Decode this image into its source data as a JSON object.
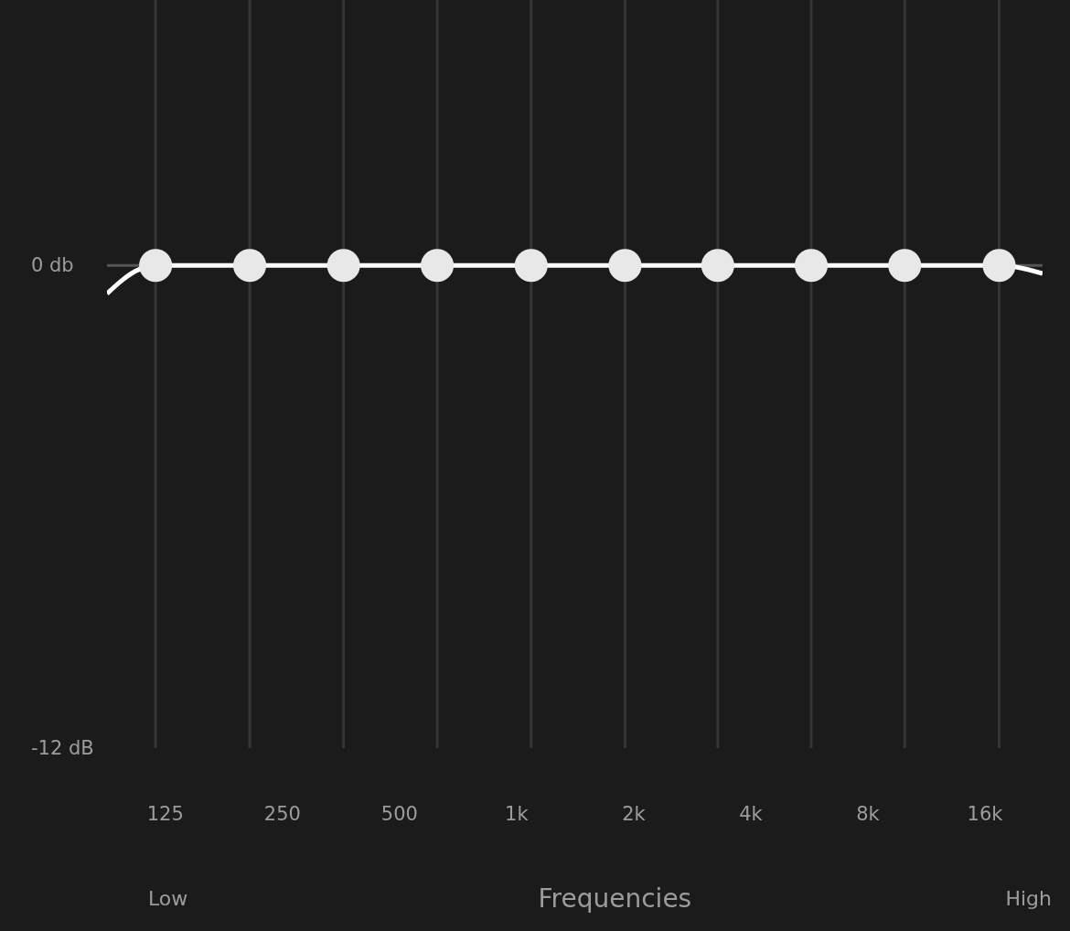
{
  "chart_data": {
    "type": "line",
    "xlabel": "Frequencies",
    "log": "x",
    "xlim": [
      88.5,
      22500
    ],
    "xticks": [
      125,
      250,
      500,
      {
        "value": 1000,
        "label": "1k"
      },
      {
        "value": 2000,
        "label": "2k"
      },
      {
        "value": 4000,
        "label": "4k"
      },
      {
        "value": 8000,
        "label": "8k"
      },
      {
        "value": 16000,
        "label": "16k"
      }
    ],
    "ylim": [
      -12,
      6.6
    ],
    "yticks": [
      {
        "value": 0,
        "label": "0 db"
      },
      {
        "value": -12,
        "label": "-12 dB"
      }
    ],
    "series": [
      {
        "color": "#ffffff",
        "marker": "none",
        "x": [
          88.5,
          107,
          118,
          206,
          359,
          625,
          1090,
          1900,
          3290,
          5720,
          9950,
          17400,
          22500
        ],
        "values": [
          -0.7,
          -0.1,
          0,
          0,
          0,
          0,
          0,
          0,
          0,
          0,
          0,
          0,
          -0.2
        ]
      },
      {
        "type": "scatter",
        "color": "#e8e8e8",
        "marker": "circle",
        "x": [
          118,
          206,
          359,
          625,
          1090,
          1900,
          3290,
          5720,
          9950,
          17400
        ],
        "values": [
          0,
          0,
          0,
          0,
          0,
          0,
          0,
          0,
          0,
          0
        ]
      }
    ],
    "ref_lines": [
      {
        "axis": "y",
        "value": 0,
        "color": "#555555"
      },
      {
        "axis": "x",
        "value": 118,
        "color": "#353535"
      },
      {
        "axis": "x",
        "value": 206,
        "color": "#353535"
      },
      {
        "axis": "x",
        "value": 359,
        "color": "#353535"
      },
      {
        "axis": "x",
        "value": 625,
        "color": "#353535"
      },
      {
        "axis": "x",
        "value": 1090,
        "color": "#353535"
      },
      {
        "axis": "x",
        "value": 1900,
        "color": "#353535"
      },
      {
        "axis": "x",
        "value": 3290,
        "color": "#353535"
      },
      {
        "axis": "x",
        "value": 5720,
        "color": "#353535"
      },
      {
        "axis": "x",
        "value": 9950,
        "color": "#353535"
      },
      {
        "axis": "x",
        "value": 17400,
        "color": "#353535"
      }
    ],
    "annotations": [
      "Low",
      "High"
    ]
  }
}
